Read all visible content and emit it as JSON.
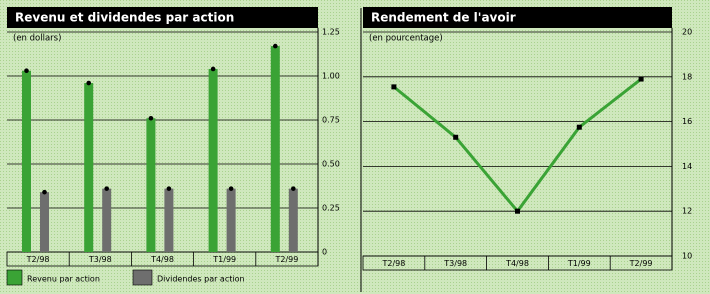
{
  "chart_data": [
    {
      "type": "bar",
      "title": "Revenu et dividendes par action",
      "subtitle": "(en dollars)",
      "categories": [
        "T2/98",
        "T3/98",
        "T4/98",
        "T1/99",
        "T2/99"
      ],
      "series": [
        {
          "name": "Revenu par action",
          "color": "#3aa335",
          "values": [
            1.03,
            0.96,
            0.76,
            1.04,
            1.17
          ]
        },
        {
          "name": "Dividendes par action",
          "color": "#6e6e6e",
          "values": [
            0.34,
            0.36,
            0.36,
            0.36,
            0.36
          ]
        }
      ],
      "ylim": [
        0,
        1.25
      ],
      "yticks": [
        0,
        0.25,
        {
          "value": 0.5,
          "label": "0.50"
        },
        0.75,
        {
          "value": 1,
          "label": "1.00"
        },
        1.25
      ],
      "grid": true
    },
    {
      "type": "line",
      "title": "Rendement de l'avoir",
      "subtitle": "(en pourcentage)",
      "categories": [
        "T2/98",
        "T3/98",
        "T4/98",
        "T1/99",
        "T2/99"
      ],
      "values": [
        17.55,
        15.3,
        12.0,
        15.75,
        17.9
      ],
      "color": "#3aa335",
      "ylim": [
        10,
        20
      ],
      "yticks": [
        10,
        12,
        14,
        16,
        18,
        20
      ],
      "grid": true
    }
  ]
}
